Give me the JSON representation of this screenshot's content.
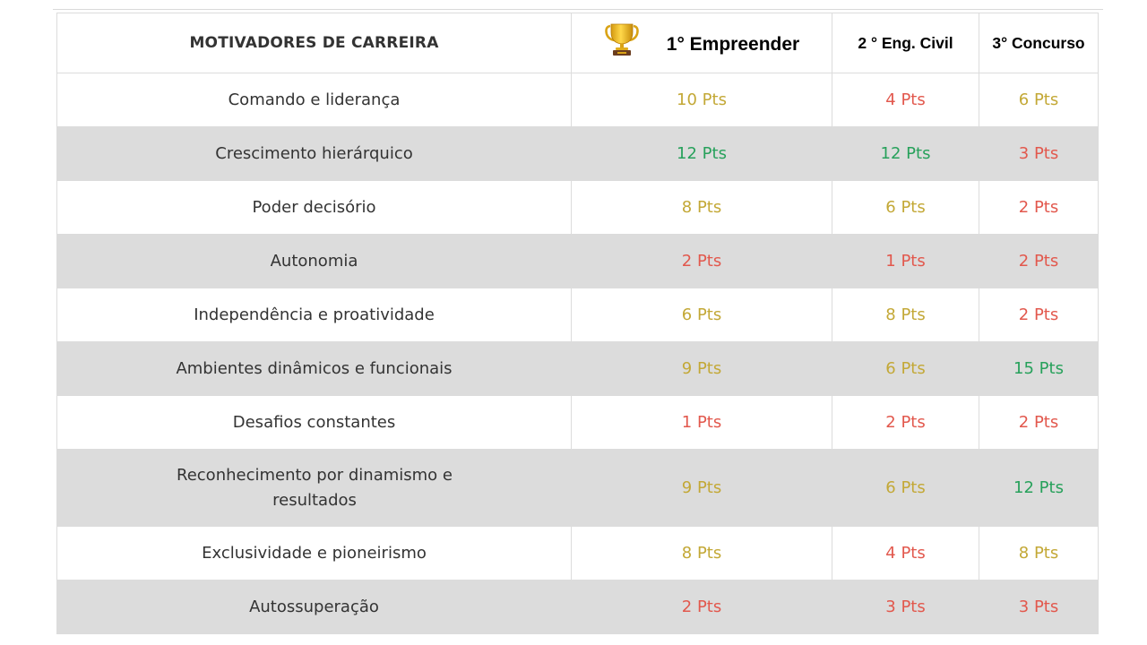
{
  "header": {
    "motivators_title": "MOTIVADORES DE CARREIRA",
    "col1": "1° Empreender",
    "col1_icon": "trophy-icon",
    "col2": "2 ° Eng. Civil",
    "col3": "3° Concurso"
  },
  "colors": {
    "yellow": "#c3a836",
    "red": "#e2584d",
    "green": "#27a15b"
  },
  "rows": [
    {
      "label": "Comando e liderança",
      "c1": "10 Pts",
      "c1_color": "yellow",
      "c2": "4 Pts",
      "c2_color": "red",
      "c3": "6 Pts",
      "c3_color": "yellow"
    },
    {
      "label": "Crescimento hierárquico",
      "c1": "12 Pts",
      "c1_color": "green",
      "c2": "12 Pts",
      "c2_color": "green",
      "c3": "3 Pts",
      "c3_color": "red"
    },
    {
      "label": "Poder decisório",
      "c1": "8 Pts",
      "c1_color": "yellow",
      "c2": "6 Pts",
      "c2_color": "yellow",
      "c3": "2 Pts",
      "c3_color": "red"
    },
    {
      "label": "Autonomia",
      "c1": "2 Pts",
      "c1_color": "red",
      "c2": "1 Pts",
      "c2_color": "red",
      "c3": "2 Pts",
      "c3_color": "red"
    },
    {
      "label": "Independência e proatividade",
      "c1": "6 Pts",
      "c1_color": "yellow",
      "c2": "8 Pts",
      "c2_color": "yellow",
      "c3": "2 Pts",
      "c3_color": "red"
    },
    {
      "label": "Ambientes dinâmicos e funcionais",
      "c1": "9 Pts",
      "c1_color": "yellow",
      "c2": "6 Pts",
      "c2_color": "yellow",
      "c3": "15 Pts",
      "c3_color": "green"
    },
    {
      "label": "Desafios constantes",
      "c1": "1 Pts",
      "c1_color": "red",
      "c2": "2 Pts",
      "c2_color": "red",
      "c3": "2 Pts",
      "c3_color": "red"
    },
    {
      "label_line1": "Reconhecimento por dinamismo e",
      "label_line2": "resultados",
      "c1": "9 Pts",
      "c1_color": "yellow",
      "c2": "6 Pts",
      "c2_color": "yellow",
      "c3": "12 Pts",
      "c3_color": "green"
    },
    {
      "label": "Exclusividade e pioneirismo",
      "c1": "8 Pts",
      "c1_color": "yellow",
      "c2": "4 Pts",
      "c2_color": "red",
      "c3": "8 Pts",
      "c3_color": "yellow"
    },
    {
      "label": "Autossuperação",
      "c1": "2 Pts",
      "c1_color": "red",
      "c2": "3 Pts",
      "c2_color": "red",
      "c3": "3 Pts",
      "c3_color": "red"
    }
  ]
}
